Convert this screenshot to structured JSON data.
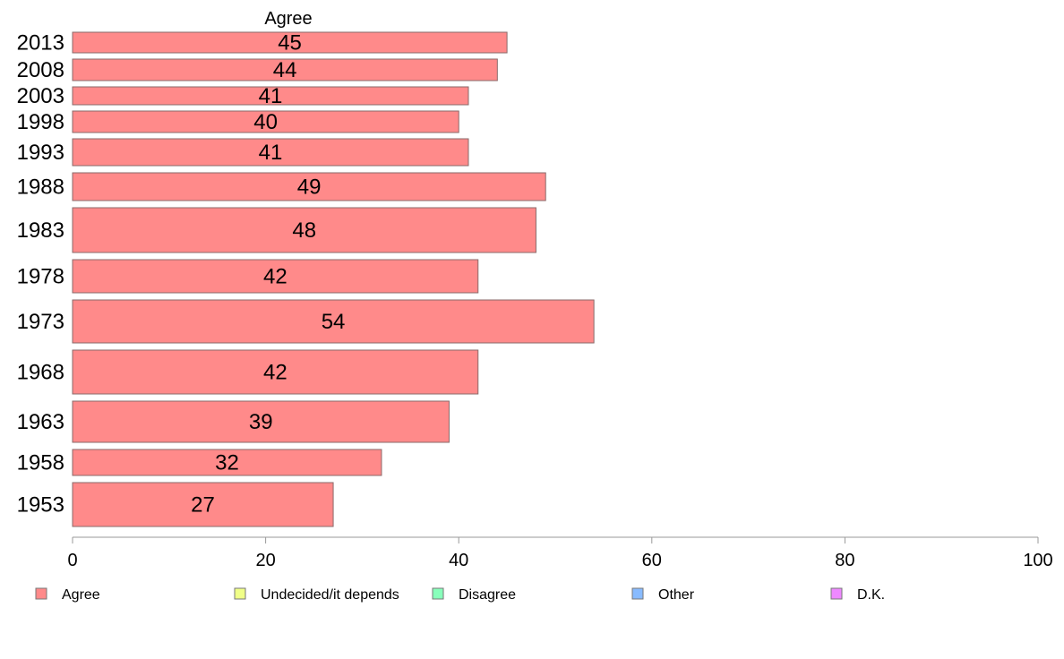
{
  "chart_data": {
    "type": "bar",
    "orientation": "horizontal",
    "title": "Agree",
    "categories": [
      "2013",
      "2008",
      "2003",
      "1998",
      "1993",
      "1988",
      "1983",
      "1978",
      "1973",
      "1968",
      "1963",
      "1958",
      "1953"
    ],
    "series": [
      {
        "name": "Agree",
        "values": [
          45,
          44,
          41,
          40,
          41,
          49,
          48,
          42,
          54,
          42,
          39,
          32,
          27
        ],
        "color": "#ff8a8a"
      }
    ],
    "value_labels": [
      "45",
      "44",
      "41",
      "40",
      "41",
      "49",
      "48",
      "42",
      "54",
      "42",
      "39",
      "32",
      "27"
    ],
    "xlim": [
      0,
      100
    ],
    "x_ticks": [
      0,
      20,
      40,
      60,
      80,
      100
    ],
    "grid": false,
    "legend_position": "bottom",
    "legend": [
      {
        "label": "Agree",
        "color": "#ff8a8a"
      },
      {
        "label": "Undecided/it depends",
        "color": "#f0ff88"
      },
      {
        "label": "Disagree",
        "color": "#88ffbb"
      },
      {
        "label": "Other",
        "color": "#88bbff"
      },
      {
        "label": "D.K.",
        "color": "#ee88ff"
      }
    ]
  }
}
